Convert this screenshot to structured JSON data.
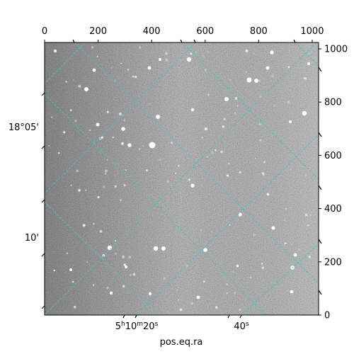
{
  "chart_data": {
    "type": "image",
    "xlabel": "pos.eq.ra",
    "ylabel": "",
    "pixel_axis_x": {
      "ticks": [
        0,
        200,
        400,
        600,
        800,
        1000
      ],
      "range": [
        0,
        1024
      ]
    },
    "pixel_axis_y": {
      "ticks": [
        0,
        200,
        400,
        600,
        800,
        1000
      ],
      "range": [
        0,
        1024
      ]
    },
    "dec_ticks": [
      {
        "label": "18°05'"
      },
      {
        "label": "10'"
      }
    ],
    "ra_ticks": [
      {
        "label": "5h10m20s",
        "main": "5",
        "h": "h",
        "m_val": "10",
        "m": "m",
        "s_val": "20",
        "s": "s"
      },
      {
        "label": "40s",
        "main": "40",
        "s": "s"
      }
    ],
    "grid_color": "#3cc8c8",
    "grid": true
  }
}
